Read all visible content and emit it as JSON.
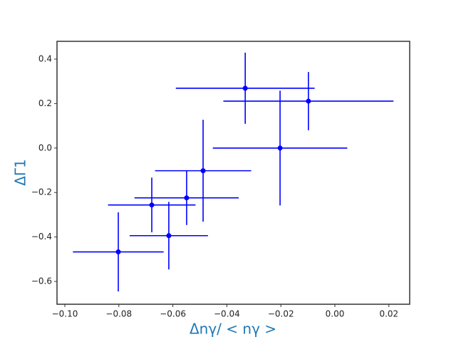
{
  "chart_data": {
    "type": "errorbar",
    "xlabel": "Δnγ/ < nγ >",
    "ylabel": "ΔΓ1",
    "series": [
      {
        "color": "#0000ff",
        "x": [
          -0.0802,
          -0.0678,
          -0.0615,
          -0.0549,
          -0.0488,
          -0.0332,
          -0.0203,
          -0.0098
        ],
        "values": [
          -0.467,
          -0.256,
          -0.394,
          -0.224,
          -0.102,
          0.269,
          0.0,
          0.211
        ],
        "xerr": [
          0.0168,
          0.0162,
          0.0145,
          0.0193,
          0.0178,
          0.0257,
          0.0249,
          0.0315
        ],
        "yerr": [
          0.178,
          0.123,
          0.152,
          0.122,
          0.229,
          0.16,
          0.258,
          0.131
        ]
      }
    ],
    "xlim": [
      -0.1029,
      0.0277
    ],
    "ylim": [
      -0.7024,
      0.48
    ],
    "xticks": [
      {
        "value": -0.1,
        "label": "−0.10"
      },
      {
        "value": -0.08,
        "label": "−0.08"
      },
      {
        "value": -0.06,
        "label": "−0.06"
      },
      {
        "value": -0.04,
        "label": "−0.04"
      },
      {
        "value": -0.02,
        "label": "−0.02"
      },
      {
        "value": 0,
        "label": "0.00"
      },
      {
        "value": 0.02,
        "label": "0.02"
      }
    ],
    "yticks": [
      {
        "value": -0.6,
        "label": "−0.6"
      },
      {
        "value": -0.4,
        "label": "−0.4"
      },
      {
        "value": -0.2,
        "label": "−0.2"
      },
      {
        "value": 0,
        "label": "0.0"
      },
      {
        "value": 0.2,
        "label": "0.2"
      },
      0.4
    ],
    "label_color": "#1f77b4"
  }
}
